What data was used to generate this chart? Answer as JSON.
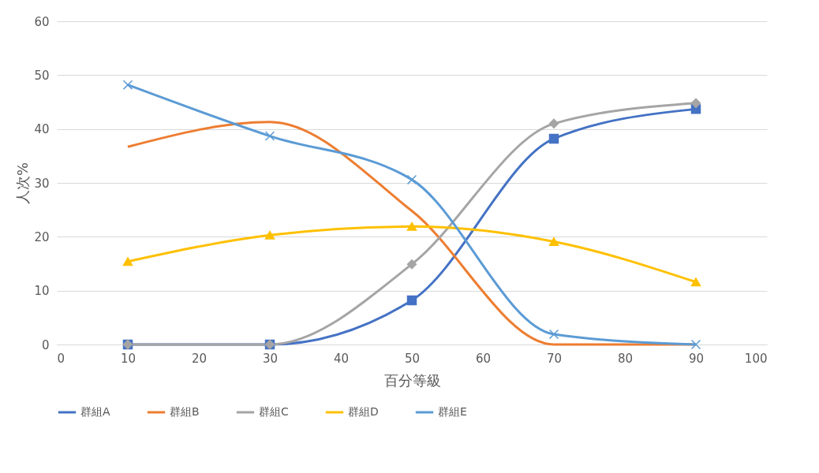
{
  "chart_data": {
    "type": "line",
    "xlabel": "百分等級",
    "ylabel": "人次%",
    "x": [
      10,
      30,
      50,
      70,
      90
    ],
    "xlim": [
      0,
      100
    ],
    "xticks": [
      0,
      10,
      20,
      30,
      40,
      50,
      60,
      70,
      80,
      90,
      100
    ],
    "ylim": [
      0,
      60
    ],
    "yticks": [
      0,
      10,
      20,
      30,
      40,
      50,
      60
    ],
    "grid": "y",
    "legend": "bottom",
    "series": [
      {
        "name": "群組A",
        "color": "#4472c4",
        "marker": "square",
        "values": [
          0,
          0,
          8.2,
          38.2,
          43.7
        ]
      },
      {
        "name": "群組B",
        "color": "#ed7d31",
        "marker": "none",
        "values": [
          36.7,
          41.3,
          24.8,
          0,
          0
        ]
      },
      {
        "name": "群組C",
        "color": "#a5a5a5",
        "marker": "diamond",
        "values": [
          0,
          0,
          14.9,
          41,
          44.8
        ]
      },
      {
        "name": "群組D",
        "color": "#ffc000",
        "marker": "triangle",
        "values": [
          15.4,
          20.3,
          21.9,
          19.1,
          11.6
        ]
      },
      {
        "name": "群組E",
        "color": "#5b9bd5",
        "marker": "cross",
        "values": [
          48.2,
          38.7,
          30.6,
          1.9,
          0
        ]
      }
    ]
  }
}
